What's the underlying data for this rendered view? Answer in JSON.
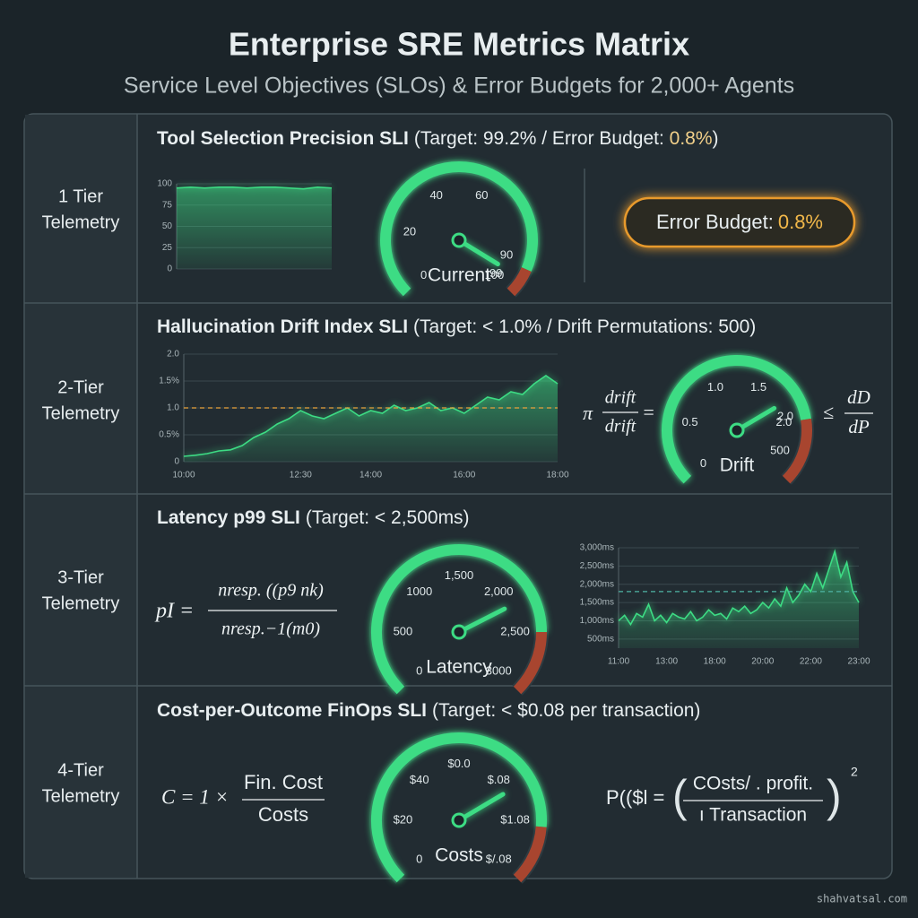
{
  "header": {
    "title": "Enterprise SRE Metrics Matrix",
    "subtitle": "Service Level Objectives (SLOs) & Error Budgets for 2,000+ Agents"
  },
  "rows": [
    {
      "tier": [
        "1 Tier",
        "Telemetry"
      ],
      "heading": {
        "name": "Tool Selection Precision SLI",
        "target": "(Target: 99.2% / Error Budget: ",
        "budget": "0.8%",
        "close": ")"
      },
      "badge": {
        "label": "Error Budget:",
        "value": "0.8%"
      }
    },
    {
      "tier": [
        "2-Tier",
        "Telemetry"
      ],
      "heading": {
        "name": "Hallucination Drift Index SLI",
        "target": "(Target: < 1.0% / Drift Permutations: 500)"
      },
      "formula_left": {
        "lhs": "π",
        "num": "drift",
        "den": "drift",
        "op": "="
      },
      "formula_right": {
        "op": "≤",
        "num": "dD",
        "den": "dP"
      }
    },
    {
      "tier": [
        "3-Tier",
        "Telemetry"
      ],
      "heading": {
        "name": "Latency p99 SLI",
        "target": "(Target: < 2,500ms)"
      },
      "formula": {
        "lhs": "pI =",
        "num": "nresp. ((p9 nk)",
        "den": "nresp.−1(m0)"
      }
    },
    {
      "tier": [
        "4-Tier",
        "Telemetry"
      ],
      "heading": {
        "name": "Cost-per-Outcome FinOps SLI",
        "target": "(Target: < $0.08 per transaction)"
      },
      "formula_left": {
        "lhs": "C = 1 ×",
        "num": "Fin. Cost",
        "den": "Costs"
      },
      "formula_right": {
        "lhs": "P(($l =",
        "open": "(",
        "num": "COsts/ . profit.",
        "den": "ı Transaction",
        "close": ")",
        "power": "2"
      }
    }
  ],
  "chart_data": [
    {
      "type": "area",
      "color": "#3ddc84",
      "values": [
        95,
        96,
        95,
        96,
        96,
        95,
        96,
        96,
        95,
        94,
        96,
        95
      ],
      "ylim": [
        0,
        100
      ],
      "yticks": [
        0,
        25,
        50,
        75,
        100
      ],
      "grid": true
    },
    {
      "type": "gauge",
      "label": "Current",
      "lim": [
        0,
        100
      ],
      "ticks": [
        0,
        20,
        40,
        60,
        90,
        99,
        100
      ],
      "value": 95,
      "zone_from": 92,
      "color": "#3ddc84"
    },
    {
      "type": "area",
      "color": "#3ddc84",
      "x": [
        10,
        10.25,
        10.5,
        10.75,
        11,
        11.25,
        11.5,
        11.75,
        12,
        12.25,
        12.5,
        12.75,
        13,
        13.25,
        13.5,
        13.75,
        14,
        14.25,
        14.5,
        14.75,
        15,
        15.25,
        15.5,
        15.75,
        16,
        16.25,
        16.5,
        16.75,
        17,
        17.25,
        17.5,
        17.75,
        18
      ],
      "values": [
        0.1,
        0.12,
        0.15,
        0.2,
        0.22,
        0.3,
        0.45,
        0.55,
        0.7,
        0.8,
        0.95,
        0.85,
        0.8,
        0.9,
        1.0,
        0.85,
        0.95,
        0.9,
        1.05,
        0.95,
        1.0,
        1.1,
        0.95,
        1.0,
        0.9,
        1.05,
        1.2,
        1.15,
        1.3,
        1.25,
        1.45,
        1.6,
        1.45
      ],
      "xlim": [
        10,
        18
      ],
      "xticks": [
        {
          "value": 10,
          "label": "10:00"
        },
        {
          "value": 12.5,
          "label": "12:30"
        },
        {
          "value": 14,
          "label": "14:00"
        },
        {
          "value": 16,
          "label": "16:00"
        },
        {
          "value": 18,
          "label": "18:00"
        }
      ],
      "ylim": [
        0,
        2
      ],
      "yticks": [
        0,
        {
          "value": 0.5,
          "label": "0.5%"
        },
        {
          "value": 1,
          "label": "1.0"
        },
        {
          "value": 1.5,
          "label": "1.5%"
        },
        {
          "value": 2,
          "label": "2.0"
        }
      ],
      "grid": true,
      "threshold": 1,
      "threshold_color": "#e8a33d"
    },
    {
      "type": "gauge",
      "label": "Drift",
      "lim": [
        0,
        2.5
      ],
      "ticks": [
        0,
        0.5,
        {
          "value": 1,
          "label": "1.0"
        },
        1.5,
        {
          "value": 2,
          "label": "2.0"
        }
      ],
      "inner_labels": [
        "2.0",
        "500"
      ],
      "value": 1.8,
      "zone_from": 2,
      "color": "#3ddc84"
    },
    {
      "type": "gauge",
      "label": "Latency",
      "lim": [
        0,
        3000
      ],
      "ticks": [
        0,
        500,
        1000,
        {
          "value": 1500,
          "label": "1,500"
        },
        {
          "value": 2000,
          "label": "2,000"
        },
        {
          "value": 2500,
          "label": "2,500"
        },
        3000
      ],
      "value": 2200,
      "zone_from": 2500,
      "color": "#3ddc84"
    },
    {
      "type": "area",
      "color": "#3ddc84",
      "x": [
        0,
        1,
        2,
        3,
        4,
        5,
        6,
        7,
        8,
        9,
        10,
        11,
        12,
        13,
        14,
        15,
        16,
        17,
        18,
        19,
        20,
        21,
        22,
        23,
        24,
        25,
        26,
        27,
        28,
        29,
        30,
        31,
        32,
        33,
        34,
        35,
        36,
        37,
        38,
        39,
        40
      ],
      "values": [
        1000,
        1150,
        900,
        1200,
        1100,
        1450,
        1000,
        1150,
        950,
        1200,
        1100,
        1050,
        1250,
        1000,
        1100,
        1300,
        1150,
        1200,
        1050,
        1350,
        1250,
        1400,
        1200,
        1300,
        1500,
        1350,
        1600,
        1400,
        1900,
        1500,
        1700,
        2000,
        1800,
        2300,
        1900,
        2400,
        2900,
        2200,
        2600,
        1800,
        1500
      ],
      "xlim": [
        0,
        40
      ],
      "xticks": [
        {
          "value": 0,
          "label": "11:00"
        },
        {
          "value": 8,
          "label": "13:00"
        },
        {
          "value": 16,
          "label": "18:00"
        },
        {
          "value": 24,
          "label": "20:00"
        },
        {
          "value": 32,
          "label": "22:00"
        },
        {
          "value": 40,
          "label": "23:00"
        }
      ],
      "ylim": [
        250,
        3000
      ],
      "yticks": [
        {
          "value": 500,
          "label": "500ms"
        },
        {
          "value": 1000,
          "label": "1,000ms"
        },
        {
          "value": 1500,
          "label": "1,500ms"
        },
        {
          "value": 2000,
          "label": "2,000ms"
        },
        {
          "value": 2500,
          "label": "2,500ms"
        },
        {
          "value": 3000,
          "label": "3,000ms"
        }
      ],
      "grid": true,
      "threshold": 1800,
      "threshold_color": "#4fb3a4"
    },
    {
      "type": "gauge",
      "label": "Costs",
      "labels": [
        "0",
        "$20",
        "$40",
        "$0.0",
        "$.08",
        "$1.08",
        "$/.08"
      ],
      "color": "#3ddc84"
    }
  ],
  "footer": {
    "watermark": "shahvatsal.com"
  }
}
